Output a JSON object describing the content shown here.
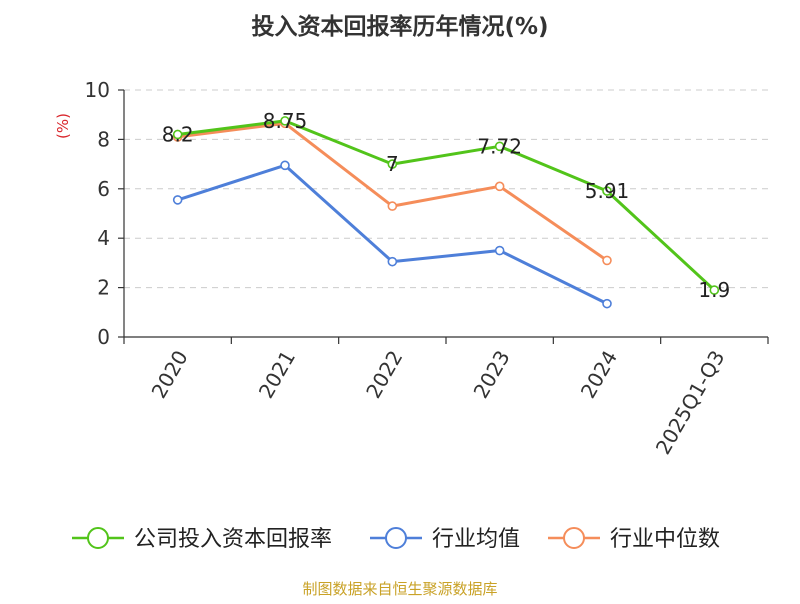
{
  "chart_data": {
    "type": "line",
    "title": "投入资本回报率历年情况(%)",
    "ylabel": "(%)",
    "xlabel": "",
    "ylim": [
      0,
      10
    ],
    "yticks": [
      0,
      2,
      4,
      6,
      8,
      10
    ],
    "grid": true,
    "legend_position": "bottom",
    "categories": [
      "2020",
      "2021",
      "2022",
      "2023",
      "2024",
      "2025Q1-Q3"
    ],
    "series": [
      {
        "name": "公司投入资本回报率",
        "color": "#52c41a",
        "values": [
          8.2,
          8.75,
          7,
          7.72,
          5.91,
          1.9
        ],
        "labels": [
          "8.2",
          "8.75",
          "7",
          "7.72",
          "5.91",
          "1.9"
        ]
      },
      {
        "name": "行业均值",
        "color": "#4e7fd9",
        "values": [
          5.55,
          6.95,
          3.05,
          3.5,
          1.35,
          null
        ]
      },
      {
        "name": "行业中位数",
        "color": "#f58d5a",
        "values": [
          8.1,
          8.65,
          5.3,
          6.1,
          3.1,
          null
        ]
      }
    ]
  },
  "colors": {
    "title": "#333333",
    "ylabel": "#d9262c",
    "axis": "#333333",
    "grid": "#cccccc",
    "source": "#c9a227"
  },
  "source": "制图数据来自恒生聚源数据库"
}
